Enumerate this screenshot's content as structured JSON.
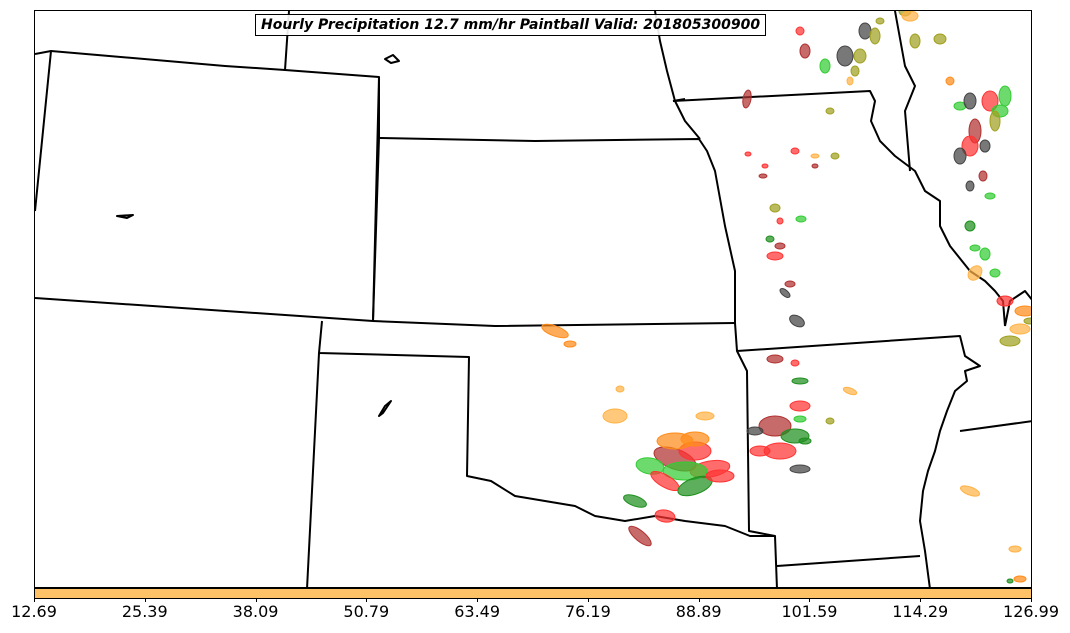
{
  "title": "Hourly Precipitation 12.7 mm/hr Paintball Valid: 201805300900",
  "colorbar": {
    "fill_color": "#ffc266",
    "ticks": [
      "12.69",
      "25.39",
      "38.09",
      "50.79",
      "63.49",
      "76.19",
      "88.89",
      "101.59",
      "114.29",
      "126.99"
    ]
  },
  "paintball_colors": [
    "#ff3333",
    "#b03030",
    "#ff8c1a",
    "#ffb347",
    "#33cc33",
    "#1f8f1f",
    "#444444",
    "#a0a020"
  ]
}
